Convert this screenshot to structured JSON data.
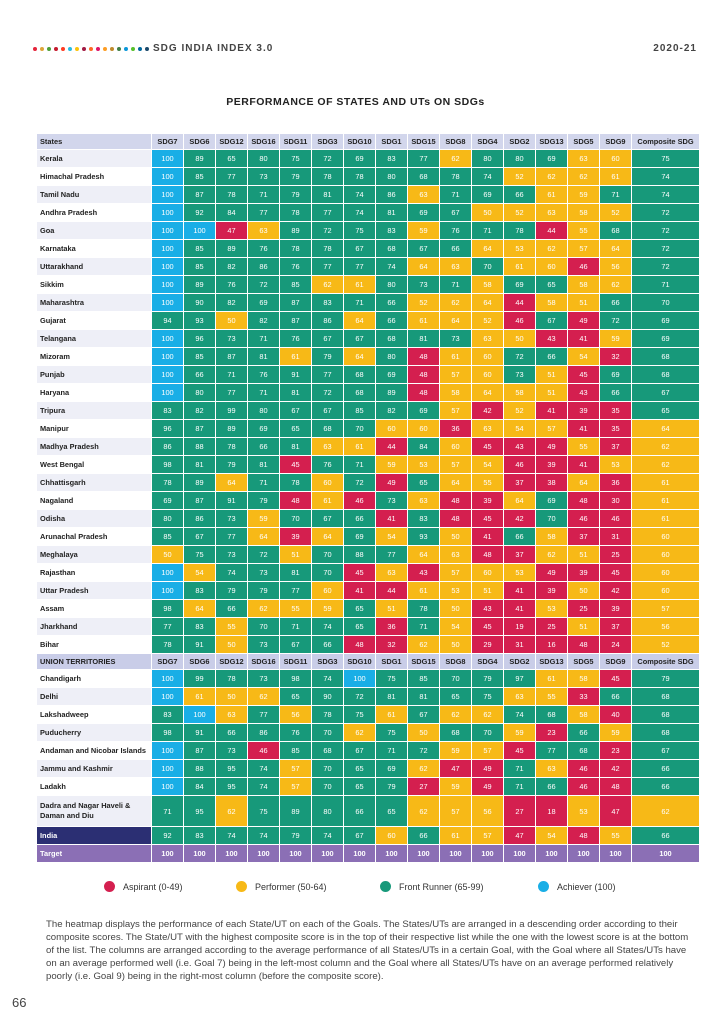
{
  "header": {
    "title": "SDG INDIA INDEX 3.0",
    "year": "2020-21"
  },
  "dot_colors": [
    "#e5243b",
    "#dda63a",
    "#4c9f38",
    "#c5192d",
    "#ff3a21",
    "#26bde2",
    "#fcc30b",
    "#a21942",
    "#fd6925",
    "#dd1367",
    "#fd9d24",
    "#bf8b2e",
    "#3f7e44",
    "#0a97d9",
    "#56c02b",
    "#00689d",
    "#19486a"
  ],
  "title": "PERFORMANCE OF STATES AND UTs ON SDGs",
  "columns": [
    "SDG7",
    "SDG6",
    "SDG12",
    "SDG16",
    "SDG11",
    "SDG3",
    "SDG10",
    "SDG1",
    "SDG15",
    "SDG8",
    "SDG4",
    "SDG2",
    "SDG13",
    "SDG5",
    "SDG9",
    "Composite SDG"
  ],
  "states_header": "States",
  "ut_header": "UNION TERRITORIES",
  "states": [
    {
      "name": "Kerala",
      "values": [
        100,
        89,
        65,
        80,
        75,
        72,
        69,
        83,
        77,
        62,
        80,
        80,
        69,
        63,
        60,
        75
      ]
    },
    {
      "name": "Himachal Pradesh",
      "values": [
        100,
        85,
        77,
        73,
        79,
        78,
        78,
        80,
        68,
        78,
        74,
        52,
        62,
        62,
        61,
        74
      ]
    },
    {
      "name": "Tamil Nadu",
      "values": [
        100,
        87,
        78,
        71,
        79,
        81,
        74,
        86,
        63,
        71,
        69,
        66,
        61,
        59,
        71,
        74
      ]
    },
    {
      "name": "Andhra Pradesh",
      "values": [
        100,
        92,
        84,
        77,
        78,
        77,
        74,
        81,
        69,
        67,
        50,
        52,
        63,
        58,
        52,
        72
      ]
    },
    {
      "name": "Goa",
      "values": [
        100,
        100,
        47,
        63,
        89,
        72,
        75,
        83,
        59,
        76,
        71,
        78,
        44,
        55,
        68,
        72
      ]
    },
    {
      "name": "Karnataka",
      "values": [
        100,
        85,
        89,
        76,
        78,
        78,
        67,
        68,
        67,
        66,
        64,
        53,
        62,
        57,
        64,
        72
      ]
    },
    {
      "name": "Uttarakhand",
      "values": [
        100,
        85,
        82,
        86,
        76,
        77,
        77,
        74,
        64,
        63,
        70,
        61,
        60,
        46,
        56,
        72
      ]
    },
    {
      "name": "Sikkim",
      "values": [
        100,
        89,
        76,
        72,
        85,
        62,
        61,
        80,
        73,
        71,
        58,
        69,
        65,
        58,
        62,
        71
      ]
    },
    {
      "name": "Maharashtra",
      "values": [
        100,
        90,
        82,
        69,
        87,
        83,
        71,
        66,
        52,
        62,
        64,
        44,
        58,
        51,
        66,
        70
      ]
    },
    {
      "name": "Gujarat",
      "values": [
        94,
        93,
        50,
        82,
        87,
        86,
        64,
        66,
        61,
        64,
        52,
        46,
        67,
        49,
        72,
        69
      ]
    },
    {
      "name": "Telangana",
      "values": [
        100,
        96,
        73,
        71,
        76,
        67,
        67,
        68,
        81,
        73,
        63,
        50,
        43,
        41,
        59,
        69
      ]
    },
    {
      "name": "Mizoram",
      "values": [
        100,
        85,
        87,
        81,
        61,
        79,
        64,
        80,
        48,
        61,
        60,
        72,
        66,
        54,
        32,
        68
      ]
    },
    {
      "name": "Punjab",
      "values": [
        100,
        66,
        71,
        76,
        91,
        77,
        68,
        69,
        48,
        57,
        60,
        73,
        51,
        45,
        69,
        68
      ]
    },
    {
      "name": "Haryana",
      "values": [
        100,
        80,
        77,
        71,
        81,
        72,
        68,
        89,
        48,
        58,
        64,
        58,
        51,
        43,
        66,
        67
      ]
    },
    {
      "name": "Tripura",
      "values": [
        83,
        82,
        99,
        80,
        67,
        67,
        85,
        82,
        69,
        57,
        42,
        52,
        41,
        39,
        35,
        65
      ]
    },
    {
      "name": "Manipur",
      "values": [
        96,
        87,
        89,
        69,
        65,
        68,
        70,
        60,
        60,
        36,
        63,
        54,
        57,
        41,
        35,
        64
      ]
    },
    {
      "name": "Madhya Pradesh",
      "values": [
        86,
        88,
        78,
        66,
        81,
        63,
        61,
        44,
        84,
        60,
        45,
        43,
        49,
        55,
        37,
        62
      ]
    },
    {
      "name": "West Bengal",
      "values": [
        98,
        81,
        79,
        81,
        45,
        76,
        71,
        59,
        53,
        57,
        54,
        46,
        39,
        41,
        53,
        62
      ]
    },
    {
      "name": "Chhattisgarh",
      "values": [
        78,
        89,
        64,
        71,
        78,
        60,
        72,
        49,
        65,
        64,
        55,
        37,
        38,
        64,
        36,
        61
      ]
    },
    {
      "name": "Nagaland",
      "values": [
        69,
        87,
        91,
        79,
        48,
        61,
        46,
        73,
        63,
        48,
        39,
        64,
        69,
        48,
        30,
        61
      ]
    },
    {
      "name": "Odisha",
      "values": [
        80,
        86,
        73,
        59,
        70,
        67,
        66,
        41,
        83,
        48,
        45,
        42,
        70,
        46,
        46,
        61
      ]
    },
    {
      "name": "Arunachal Pradesh",
      "values": [
        85,
        67,
        77,
        64,
        39,
        64,
        69,
        54,
        93,
        50,
        41,
        66,
        58,
        37,
        31,
        60
      ]
    },
    {
      "name": "Meghalaya",
      "values": [
        50,
        75,
        73,
        72,
        51,
        70,
        88,
        77,
        64,
        63,
        48,
        37,
        62,
        51,
        25,
        60
      ]
    },
    {
      "name": "Rajasthan",
      "values": [
        100,
        54,
        74,
        73,
        81,
        70,
        45,
        63,
        43,
        57,
        60,
        53,
        49,
        39,
        45,
        60
      ]
    },
    {
      "name": "Uttar Pradesh",
      "values": [
        100,
        83,
        79,
        79,
        77,
        60,
        41,
        44,
        61,
        53,
        51,
        41,
        39,
        50,
        42,
        60
      ]
    },
    {
      "name": "Assam",
      "values": [
        98,
        64,
        66,
        62,
        55,
        59,
        65,
        51,
        78,
        50,
        43,
        41,
        53,
        25,
        39,
        57
      ]
    },
    {
      "name": "Jharkhand",
      "values": [
        77,
        83,
        55,
        70,
        71,
        74,
        65,
        36,
        71,
        54,
        45,
        19,
        25,
        51,
        37,
        56
      ]
    },
    {
      "name": "Bihar",
      "values": [
        78,
        91,
        50,
        73,
        67,
        66,
        48,
        32,
        62,
        50,
        29,
        31,
        16,
        48,
        24,
        52
      ]
    }
  ],
  "uts": [
    {
      "name": "Chandigarh",
      "values": [
        100,
        99,
        78,
        73,
        98,
        74,
        100,
        75,
        85,
        70,
        79,
        97,
        61,
        58,
        45,
        79
      ]
    },
    {
      "name": "Delhi",
      "values": [
        100,
        61,
        50,
        62,
        65,
        90,
        72,
        81,
        81,
        65,
        75,
        63,
        55,
        33,
        66,
        68
      ]
    },
    {
      "name": "Lakshadweep",
      "values": [
        83,
        100,
        63,
        77,
        56,
        78,
        75,
        61,
        67,
        62,
        62,
        74,
        68,
        58,
        40,
        68
      ]
    },
    {
      "name": "Puducherry",
      "values": [
        98,
        91,
        66,
        86,
        76,
        70,
        62,
        75,
        50,
        68,
        70,
        59,
        23,
        66,
        59,
        68
      ]
    },
    {
      "name": "Andaman and Nicobar Islands",
      "values": [
        100,
        87,
        73,
        46,
        85,
        68,
        67,
        71,
        72,
        59,
        57,
        45,
        77,
        68,
        23,
        67
      ]
    },
    {
      "name": "Jammu and Kashmir",
      "values": [
        100,
        88,
        95,
        74,
        57,
        70,
        65,
        69,
        62,
        47,
        49,
        71,
        63,
        46,
        42,
        66
      ]
    },
    {
      "name": "Ladakh",
      "values": [
        100,
        84,
        95,
        74,
        57,
        70,
        65,
        79,
        27,
        59,
        49,
        71,
        66,
        46,
        48,
        66
      ]
    },
    {
      "name": "Dadra and Nagar Haveli & Daman and Diu",
      "values": [
        71,
        95,
        62,
        75,
        89,
        80,
        66,
        65,
        62,
        57,
        56,
        27,
        18,
        53,
        47,
        62
      ]
    }
  ],
  "india": {
    "name": "India",
    "values": [
      92,
      83,
      74,
      74,
      79,
      74,
      67,
      60,
      66,
      61,
      57,
      47,
      54,
      48,
      55,
      66
    ]
  },
  "target": {
    "name": "Target",
    "values": [
      100,
      100,
      100,
      100,
      100,
      100,
      100,
      100,
      100,
      100,
      100,
      100,
      100,
      100,
      100,
      100
    ]
  },
  "legend": [
    {
      "label": "Aspirant (0-49)",
      "color": "#d41f4f"
    },
    {
      "label": "Performer (50-64)",
      "color": "#f7b917"
    },
    {
      "label": "Front Runner (65-99)",
      "color": "#17997a"
    },
    {
      "label": "Achiever (100)",
      "color": "#19aee6"
    }
  ],
  "description": "The heatmap displays the performance of each State/UT on each of the Goals. The States/UTs are arranged in a descending order according to their composite scores. The State/UT with the highest composite score is in the top of their respective list while the one with the lowest score is at the bottom of the list. The columns are arranged according to the average performance of all States/UTs in a certain Goal, with the Goal where all States/UTs have on an average performed well (i.e. Goal 7) being in the left-most column and the Goal where all States/UTs have on an average performed relatively poorly (i.e. Goal 9) being in the right-most column (before the composite score).",
  "page_number": "66"
}
